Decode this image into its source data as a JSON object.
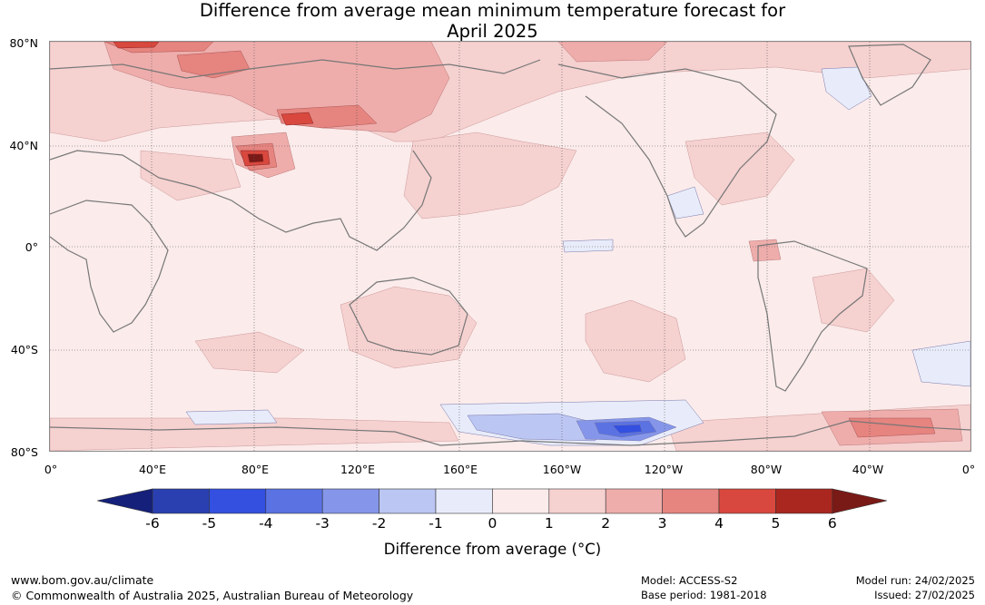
{
  "title": {
    "line1": "Difference from average mean minimum temperature forecast for",
    "line2": "April 2025"
  },
  "map": {
    "latitude_labels": [
      "80°N",
      "40°N",
      "0°",
      "40°S",
      "80°S"
    ],
    "longitude_labels": [
      "0°",
      "40°E",
      "80°E",
      "120°E",
      "160°E",
      "160°W",
      "120°W",
      "80°W",
      "40°W",
      "0°"
    ],
    "notable_features": [
      {
        "name": "Tibetan Plateau warm anomaly",
        "value_range": "5 to 6 °C"
      },
      {
        "name": "Southern Ocean cool anomaly near 140°W",
        "value_range": "-4 to -3 °C"
      },
      {
        "name": "Weddell Sea warm anomaly",
        "value_range": "3 to 4 °C"
      }
    ]
  },
  "colorbar": {
    "ticks": [
      "-6",
      "-5",
      "-4",
      "-3",
      "-2",
      "-1",
      "0",
      "1",
      "2",
      "3",
      "4",
      "5",
      "6"
    ],
    "colors": [
      "#15207a",
      "#2a3fb0",
      "#3350e0",
      "#5a72e2",
      "#8596ea",
      "#bcc6f2",
      "#e8ecfa",
      "#fbebeb",
      "#f5d1d0",
      "#eeadab",
      "#e6847f",
      "#d9483e",
      "#a9271f",
      "#7a1a17"
    ],
    "title": "Difference from average (°C)"
  },
  "footer": {
    "website": "www.bom.gov.au/climate",
    "copyright": "© Commonwealth of Australia 2025, Australian Bureau of Meteorology",
    "model": "Model: ACCESS-S2",
    "base_period": "Base period: 1981-2018",
    "model_run": "Model run: 24/02/2025",
    "issued": "Issued: 27/02/2025"
  }
}
